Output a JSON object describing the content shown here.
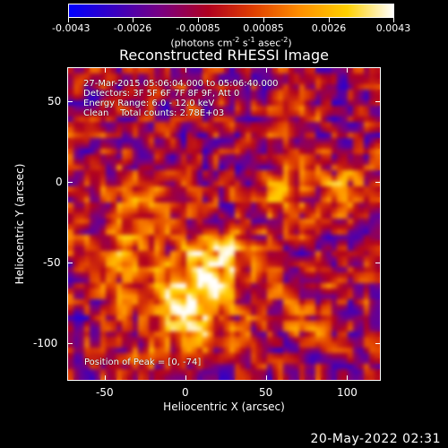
{
  "colorbar": {
    "labels": [
      "-0.0043",
      "-0.0026",
      "-0.00085",
      "0.00085",
      "0.0026",
      "0.0043"
    ],
    "units_text": "(photons cm",
    "units_exp1": "-2",
    "units_mid": " s",
    "units_exp2": "-1",
    "units_mid2": " asec",
    "units_exp3": "-2",
    "units_end": ")",
    "colors": [
      "#0000ff",
      "#3a00c0",
      "#7a0080",
      "#b00020",
      "#e04000",
      "#ff9000",
      "#ffd000",
      "#ffffff"
    ]
  },
  "title": "Reconstructed RHESSI Image",
  "info": {
    "line1": "27-Mar-2015 05:06:04.000 to 05:06:40.000",
    "line2": "Detectors: 3F 5F 6F 7F 8F 9F, Att 0",
    "line3": "Energy Range: 6.0 - 12.0 keV",
    "line4": "Clean    Total counts: 2.78E+03",
    "peak": "Position of Peak = [0, -74]"
  },
  "axes": {
    "xlabel": "Heliocentric X (arcsec)",
    "ylabel": "Heliocentric Y (arcsec)",
    "xticks": [
      "-50",
      "0",
      "50",
      "100"
    ],
    "yticks": [
      "50",
      "0",
      "-50",
      "-100"
    ],
    "xlim": [
      -72,
      122
    ],
    "ylim": [
      -122,
      72
    ]
  },
  "datestamp": "20-May-2022 02:31",
  "chart_data": {
    "type": "heatmap",
    "title": "Reconstructed RHESSI Image",
    "xlabel": "Heliocentric X (arcsec)",
    "ylabel": "Heliocentric Y (arcsec)",
    "xlim": [
      -72,
      122
    ],
    "ylim": [
      -122,
      72
    ],
    "clim": [
      -0.0043,
      0.0043
    ],
    "peak": [
      0,
      -74
    ]
  }
}
